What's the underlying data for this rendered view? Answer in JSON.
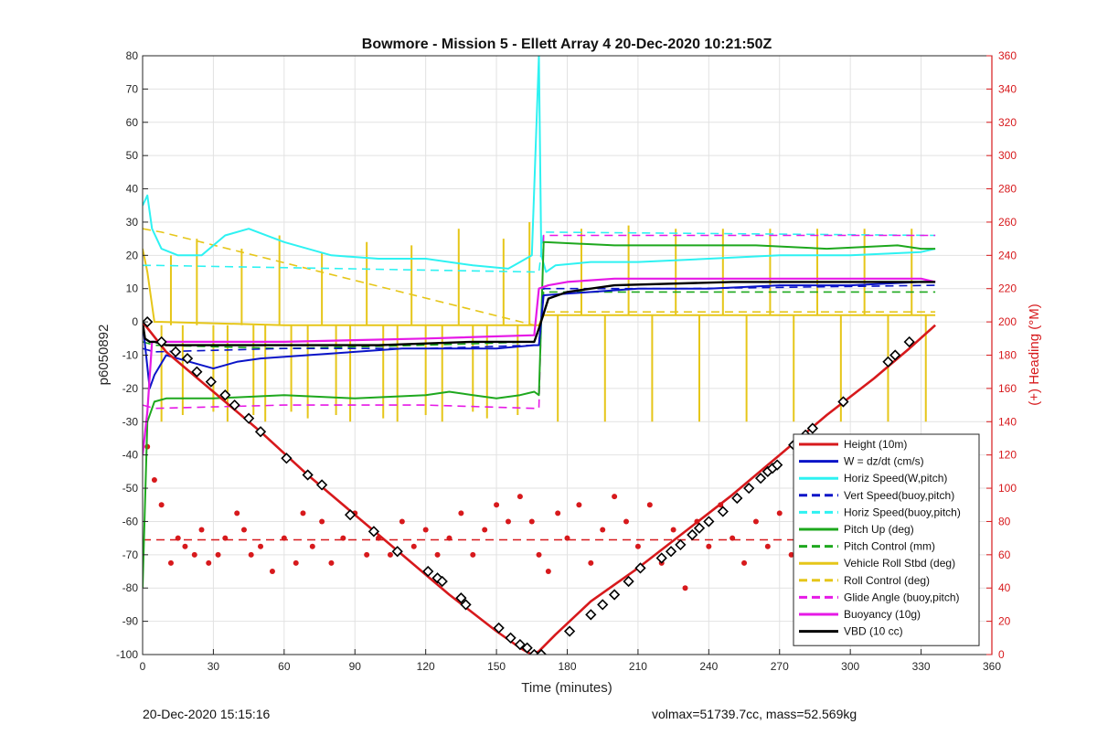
{
  "footer": {
    "left": "20-Dec-2020 15:15:16",
    "right": "volmax=51739.7cc, mass=52.569kg"
  },
  "colors": {
    "red": "#d7191c",
    "blue": "#0a14c8",
    "cyan": "#2ef2f2",
    "green": "#1ea81e",
    "yellow": "#e6c619",
    "magenta": "#e619e6",
    "black": "#000000",
    "grid": "#e2e2e2",
    "right_axis": "#d7191c"
  },
  "chart_data": {
    "type": "line",
    "title": "Bowmore - Mission 5 - Ellett Array 4 20-Dec-2020 10:21:50Z",
    "xlabel": "Time (minutes)",
    "ylabel": "p6050892",
    "ylabel_right": "(+) Heading (°M)",
    "xlim": [
      0,
      360
    ],
    "ylim": [
      -100,
      80
    ],
    "ylim_right": [
      0,
      360
    ],
    "x_ticks": [
      0,
      30,
      60,
      90,
      120,
      150,
      180,
      210,
      240,
      270,
      300,
      330,
      360
    ],
    "y_ticks": [
      80,
      70,
      60,
      50,
      40,
      30,
      20,
      10,
      0,
      -10,
      -20,
      -30,
      -40,
      -50,
      -60,
      -70,
      -80,
      -90,
      -100
    ],
    "y_ticks_right": [
      360,
      340,
      320,
      300,
      280,
      260,
      240,
      220,
      200,
      180,
      160,
      140,
      120,
      100,
      80,
      60,
      40,
      20,
      0
    ],
    "grid": true,
    "legend_position": "lower-right",
    "legend": [
      {
        "label": "Height (10m)",
        "color": "red",
        "style": "solid"
      },
      {
        "label": "W = dz/dt (cm/s)",
        "color": "blue",
        "style": "solid"
      },
      {
        "label": "Horiz Speed(W,pitch)",
        "color": "cyan",
        "style": "solid"
      },
      {
        "label": "Vert Speed(buoy,pitch)",
        "color": "blue",
        "style": "dashed"
      },
      {
        "label": "Horiz Speed(buoy,pitch)",
        "color": "cyan",
        "style": "dashed"
      },
      {
        "label": "Pitch Up (deg)",
        "color": "green",
        "style": "solid"
      },
      {
        "label": "Pitch Control (mm)",
        "color": "green",
        "style": "dashed"
      },
      {
        "label": "Vehicle Roll Stbd (deg)",
        "color": "yellow",
        "style": "solid"
      },
      {
        "label": "Roll Control (deg)",
        "color": "yellow",
        "style": "dashed"
      },
      {
        "label": "Glide Angle (buoy,pitch)",
        "color": "magenta",
        "style": "dashed"
      },
      {
        "label": "Buoyancy (10g)",
        "color": "magenta",
        "style": "solid"
      },
      {
        "label": "VBD (10 cc)",
        "color": "black",
        "style": "solid"
      }
    ],
    "series": [
      {
        "key": "height",
        "color": "red",
        "style": "solid",
        "width": 2.6,
        "x": [
          0,
          10,
          30,
          50,
          70,
          90,
          110,
          130,
          150,
          160,
          165,
          168,
          175,
          190,
          210,
          230,
          250,
          270,
          290,
          310,
          325,
          336
        ],
        "y": [
          0,
          -9,
          -21,
          -33,
          -46,
          -58,
          -70,
          -82,
          -93,
          -98,
          -100,
          -99,
          -94,
          -84,
          -74,
          -63,
          -52,
          -40,
          -28,
          -17,
          -8,
          -1
        ]
      },
      {
        "key": "height_markers",
        "color": "black",
        "style": "markers",
        "x": [
          2,
          8,
          14,
          19,
          23,
          29,
          35,
          39,
          45,
          50,
          61,
          70,
          76,
          88,
          98,
          108,
          121,
          125,
          127,
          135,
          137,
          151,
          156,
          160,
          163,
          166,
          169,
          181,
          190,
          195,
          200,
          206,
          211,
          220,
          224,
          228,
          233,
          236,
          240,
          246,
          252,
          257,
          262,
          265,
          267,
          269,
          276,
          281,
          284,
          297,
          316,
          319,
          325
        ],
        "y": [
          0,
          -6,
          -9,
          -11,
          -15,
          -18,
          -22,
          -25,
          -29,
          -33,
          -41,
          -46,
          -49,
          -58,
          -63,
          -69,
          -75,
          -77,
          -78,
          -83,
          -85,
          -92,
          -95,
          -97,
          -98,
          -100,
          -100,
          -93,
          -88,
          -85,
          -82,
          -78,
          -74,
          -71,
          -69,
          -67,
          -64,
          -62,
          -60,
          -57,
          -53,
          -50,
          -47,
          -45,
          -44,
          -43,
          -37,
          -34,
          -32,
          -24,
          -12,
          -10,
          -6
        ]
      },
      {
        "key": "heading",
        "axis": "right",
        "color": "red",
        "style": "dots",
        "x": [
          2,
          5,
          8,
          12,
          15,
          18,
          22,
          25,
          28,
          32,
          35,
          40,
          43,
          46,
          50,
          55,
          60,
          65,
          68,
          72,
          76,
          80,
          85,
          90,
          95,
          100,
          105,
          110,
          115,
          120,
          125,
          130,
          135,
          140,
          145,
          150,
          155,
          160,
          165,
          168,
          172,
          176,
          180,
          185,
          190,
          195,
          200,
          205,
          210,
          215,
          220,
          225,
          230,
          235,
          240,
          245,
          250,
          255,
          260,
          265,
          270,
          275,
          280,
          285,
          290,
          295,
          300,
          305,
          310,
          315,
          320,
          325,
          330,
          335
        ],
        "y": [
          125,
          105,
          90,
          55,
          70,
          65,
          60,
          75,
          55,
          60,
          70,
          85,
          75,
          60,
          65,
          50,
          70,
          55,
          85,
          65,
          80,
          55,
          70,
          85,
          60,
          70,
          60,
          80,
          65,
          75,
          60,
          70,
          85,
          60,
          75,
          90,
          80,
          95,
          80,
          60,
          50,
          85,
          70,
          90,
          55,
          75,
          95,
          80,
          65,
          90,
          55,
          75,
          40,
          80,
          65,
          90,
          70,
          55,
          80,
          65,
          85,
          60,
          70,
          85,
          55,
          75,
          65,
          80,
          60,
          70,
          65,
          75,
          70,
          80
        ]
      },
      {
        "key": "heading_target",
        "axis": "right",
        "color": "red",
        "style": "dashed",
        "width": 1.4,
        "x": [
          0,
          336
        ],
        "y": [
          69,
          69
        ]
      },
      {
        "key": "pitch_up",
        "color": "green",
        "style": "solid",
        "width": 2,
        "x": [
          0,
          2,
          5,
          10,
          30,
          60,
          90,
          120,
          130,
          140,
          150,
          160,
          166,
          168,
          170,
          200,
          230,
          260,
          290,
          320,
          330,
          336
        ],
        "y": [
          -80,
          -30,
          -24,
          -23,
          -23,
          -22,
          -23,
          -22,
          -21,
          -22,
          -23,
          -22,
          -21,
          -22,
          24,
          23,
          23,
          23,
          22,
          23,
          22,
          22
        ]
      },
      {
        "key": "pitch_control",
        "color": "green",
        "style": "dashed",
        "width": 1.6,
        "x": [
          0,
          5,
          60,
          120,
          166,
          168,
          170,
          200,
          260,
          336
        ],
        "y": [
          -6,
          -7,
          -8,
          -7,
          -6,
          -6,
          9,
          9,
          9,
          9
        ]
      },
      {
        "key": "w_speed",
        "color": "blue",
        "style": "solid",
        "width": 2,
        "x": [
          0,
          3,
          5,
          10,
          20,
          30,
          40,
          50,
          70,
          90,
          110,
          130,
          150,
          166,
          168,
          170,
          190,
          210,
          240,
          270,
          300,
          330,
          336
        ],
        "y": [
          0,
          -20,
          -16,
          -10,
          -12,
          -14,
          -12,
          -11,
          -10,
          -9,
          -8,
          -8,
          -8,
          -7,
          -7,
          8,
          9,
          10,
          10,
          11,
          11,
          12,
          12
        ]
      },
      {
        "key": "vert_speed",
        "color": "blue",
        "style": "dashed",
        "width": 1.6,
        "x": [
          0,
          5,
          60,
          120,
          166,
          168,
          170,
          230,
          336
        ],
        "y": [
          -8,
          -9,
          -8,
          -8,
          -7,
          -7,
          10,
          10,
          11
        ]
      },
      {
        "key": "horiz_speed",
        "color": "cyan",
        "style": "solid",
        "width": 2,
        "x": [
          0,
          2,
          4,
          8,
          15,
          25,
          35,
          45,
          60,
          80,
          100,
          120,
          140,
          155,
          160,
          165,
          168,
          169,
          171,
          175,
          190,
          210,
          240,
          270,
          300,
          330,
          336
        ],
        "y": [
          35,
          38,
          28,
          22,
          20,
          20,
          26,
          28,
          24,
          20,
          19,
          19,
          17,
          16,
          18,
          20,
          80,
          20,
          15,
          17,
          18,
          18,
          19,
          20,
          20,
          21,
          22
        ]
      },
      {
        "key": "horiz_speed_buoy",
        "color": "cyan",
        "style": "dashed",
        "width": 1.6,
        "x": [
          0,
          5,
          166,
          168,
          170,
          336
        ],
        "y": [
          17,
          17,
          15,
          15,
          27,
          26
        ]
      },
      {
        "key": "glide_angle",
        "color": "magenta",
        "style": "dashed",
        "width": 1.6,
        "x": [
          0,
          5,
          60,
          120,
          166,
          168,
          170,
          230,
          336
        ],
        "y": [
          -25,
          -26,
          -25,
          -25,
          -26,
          -26,
          26,
          26,
          26
        ]
      },
      {
        "key": "buoyancy",
        "color": "magenta",
        "style": "solid",
        "width": 2.2,
        "x": [
          0,
          2,
          4,
          6,
          60,
          120,
          166,
          168,
          172,
          180,
          200,
          240,
          290,
          330,
          336
        ],
        "y": [
          -40,
          -27,
          -6,
          -6,
          -6,
          -5,
          -4,
          10,
          11,
          12,
          13,
          13,
          13,
          13,
          12
        ]
      },
      {
        "key": "vbd",
        "color": "black",
        "style": "solid",
        "width": 2.4,
        "x": [
          0,
          1,
          3,
          5,
          10,
          100,
          140,
          166,
          168,
          172,
          180,
          200,
          250,
          300,
          330,
          336
        ],
        "y": [
          0,
          -5,
          -6,
          -6,
          -7,
          -7,
          -6,
          -6,
          -2,
          7,
          9,
          11,
          12,
          12,
          12,
          12
        ]
      },
      {
        "key": "roll",
        "color": "yellow",
        "style": "solid",
        "width": 2,
        "x": [
          0,
          2,
          5,
          8,
          60,
          120,
          166,
          168,
          170,
          230,
          300,
          336
        ],
        "y": [
          22,
          15,
          0,
          0,
          -1,
          -1,
          -1,
          -1,
          2,
          2,
          2,
          2
        ]
      },
      {
        "key": "roll_spikes",
        "color": "yellow",
        "style": "spikes",
        "width": 2,
        "x": [
          8,
          12,
          17,
          23,
          30,
          36,
          42,
          47,
          52,
          58,
          63,
          70,
          76,
          82,
          88,
          95,
          102,
          108,
          114,
          120,
          127,
          134,
          140,
          146,
          153,
          159,
          164,
          176,
          186,
          196,
          206,
          216,
          226,
          236,
          246,
          256,
          266,
          276,
          286,
          296,
          306,
          316,
          326,
          332
        ],
        "y": [
          -30,
          20,
          -28,
          25,
          -27,
          -30,
          22,
          -28,
          -30,
          26,
          -27,
          -29,
          21,
          -28,
          -30,
          24,
          -29,
          -30,
          23,
          -28,
          -30,
          28,
          -27,
          -29,
          25,
          -28,
          30,
          -30,
          28,
          -30,
          29,
          -30,
          28,
          -30,
          28,
          -30,
          28,
          -30,
          28,
          -30,
          28,
          -30,
          28,
          -30
        ]
      },
      {
        "key": "roll_control",
        "color": "yellow",
        "style": "dashed",
        "width": 1.6,
        "x": [
          0,
          8,
          166,
          168,
          170,
          336
        ],
        "y": [
          28,
          27,
          -1,
          -1,
          3,
          3
        ]
      }
    ]
  }
}
